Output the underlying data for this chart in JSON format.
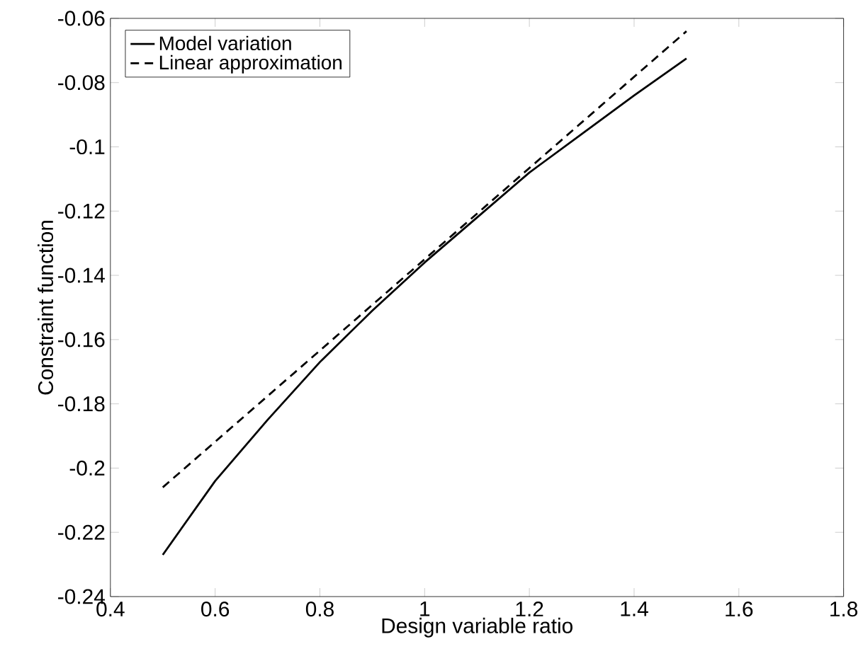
{
  "chart_data": {
    "type": "line",
    "xlabel": "Design variable ratio",
    "ylabel": "Constraint function",
    "xlim": [
      0.4,
      1.8
    ],
    "xticks": [
      0.4,
      0.6,
      0.8,
      1,
      1.2,
      1.4,
      1.6,
      1.8
    ],
    "ylim": [
      -0.24,
      -0.06
    ],
    "yticks": [
      -0.24,
      -0.22,
      -0.2,
      -0.18,
      -0.16,
      -0.14,
      -0.12,
      -0.1,
      -0.08,
      -0.06
    ],
    "grid": false,
    "legend": "top left",
    "marker": "none",
    "series": [
      {
        "name": "Model variation",
        "color": "#000000",
        "line_style": "solid",
        "x": [
          0.5,
          0.6,
          0.7,
          0.8,
          0.9,
          1.0,
          1.1,
          1.2,
          1.3,
          1.4,
          1.5
        ],
        "values": [
          -0.227,
          -0.204,
          -0.185,
          -0.167,
          -0.151,
          -0.136,
          -0.122,
          -0.108,
          -0.096,
          -0.084,
          -0.0725
        ]
      },
      {
        "name": "Linear approximation",
        "color": "#000000",
        "line_style": "dashed",
        "x": [
          0.5,
          1.5
        ],
        "values": [
          -0.206,
          -0.064
        ]
      }
    ]
  }
}
